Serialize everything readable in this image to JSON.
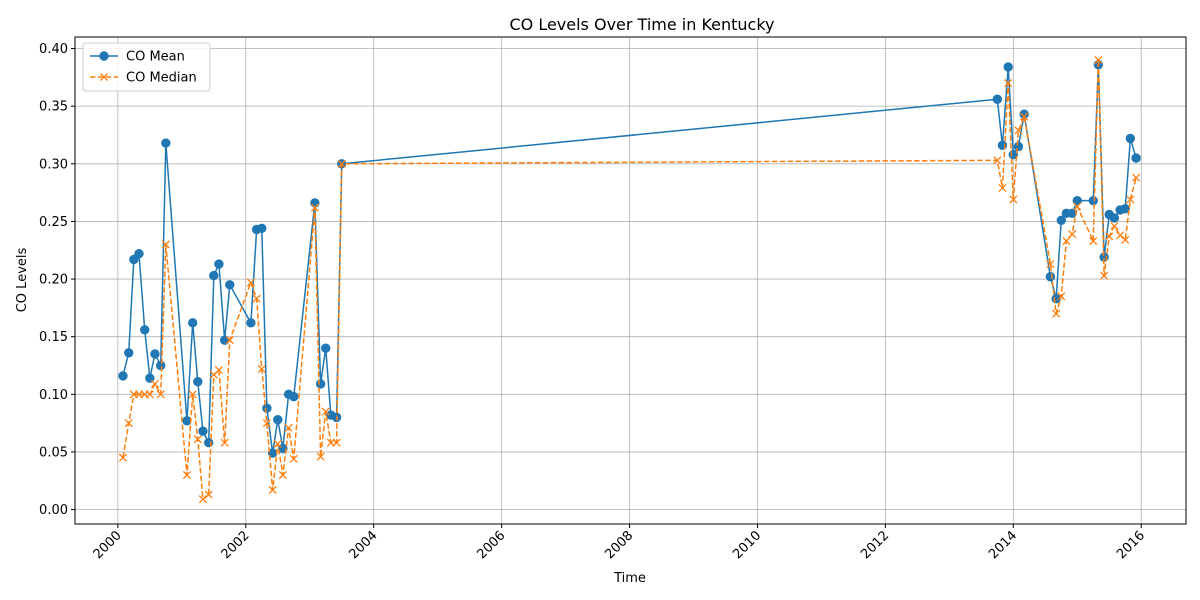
{
  "chart_data": {
    "type": "line",
    "title": "CO Levels Over Time in Kentucky",
    "xlabel": "Time",
    "ylabel": "CO Levels",
    "xlim": [
      1999.33,
      2016.7
    ],
    "ylim": [
      -0.0125,
      0.41
    ],
    "grid": true,
    "legend_position": "top-left",
    "x_ticks": [
      2000,
      2002,
      2004,
      2006,
      2008,
      2010,
      2012,
      2014,
      2016
    ],
    "x_tick_labels": [
      "2000",
      "2002",
      "2004",
      "2006",
      "2008",
      "2010",
      "2012",
      "2014",
      "2016"
    ],
    "y_ticks": [
      0.0,
      0.05,
      0.1,
      0.15,
      0.2,
      0.25,
      0.3,
      0.35,
      0.4
    ],
    "y_tick_labels": [
      "0.00",
      "0.05",
      "0.10",
      "0.15",
      "0.20",
      "0.25",
      "0.30",
      "0.35",
      "0.40"
    ],
    "series": [
      {
        "name": "CO Mean",
        "color": "#1f77b4",
        "style": "solid",
        "marker": "circle",
        "points": [
          [
            2000.08,
            0.116
          ],
          [
            2000.17,
            0.136
          ],
          [
            2000.25,
            0.217
          ],
          [
            2000.33,
            0.222
          ],
          [
            2000.42,
            0.156
          ],
          [
            2000.5,
            0.114
          ],
          [
            2000.58,
            0.135
          ],
          [
            2000.67,
            0.125
          ],
          [
            2000.75,
            0.318
          ],
          [
            2001.08,
            0.077
          ],
          [
            2001.17,
            0.162
          ],
          [
            2001.25,
            0.111
          ],
          [
            2001.33,
            0.068
          ],
          [
            2001.42,
            0.058
          ],
          [
            2001.5,
            0.203
          ],
          [
            2001.58,
            0.213
          ],
          [
            2001.67,
            0.147
          ],
          [
            2001.75,
            0.195
          ],
          [
            2002.08,
            0.162
          ],
          [
            2002.17,
            0.243
          ],
          [
            2002.25,
            0.244
          ],
          [
            2002.33,
            0.088
          ],
          [
            2002.42,
            0.049
          ],
          [
            2002.5,
            0.078
          ],
          [
            2002.58,
            0.053
          ],
          [
            2002.67,
            0.1
          ],
          [
            2002.75,
            0.098
          ],
          [
            2003.08,
            0.266
          ],
          [
            2003.17,
            0.109
          ],
          [
            2003.25,
            0.14
          ],
          [
            2003.33,
            0.082
          ],
          [
            2003.42,
            0.08
          ],
          [
            2003.5,
            0.3
          ],
          [
            2013.75,
            0.356
          ],
          [
            2013.83,
            0.316
          ],
          [
            2013.92,
            0.384
          ],
          [
            2014.0,
            0.308
          ],
          [
            2014.08,
            0.315
          ],
          [
            2014.17,
            0.343
          ],
          [
            2014.58,
            0.202
          ],
          [
            2014.67,
            0.183
          ],
          [
            2014.75,
            0.251
          ],
          [
            2014.83,
            0.257
          ],
          [
            2014.92,
            0.257
          ],
          [
            2015.0,
            0.268
          ],
          [
            2015.25,
            0.268
          ],
          [
            2015.33,
            0.386
          ],
          [
            2015.42,
            0.219
          ],
          [
            2015.5,
            0.256
          ],
          [
            2015.58,
            0.253
          ],
          [
            2015.67,
            0.26
          ],
          [
            2015.75,
            0.261
          ],
          [
            2015.83,
            0.322
          ],
          [
            2015.92,
            0.305
          ]
        ]
      },
      {
        "name": "CO Median",
        "color": "#ff7f0e",
        "style": "dashed",
        "marker": "x",
        "points": [
          [
            2000.08,
            0.045
          ],
          [
            2000.17,
            0.075
          ],
          [
            2000.25,
            0.1
          ],
          [
            2000.33,
            0.1
          ],
          [
            2000.42,
            0.1
          ],
          [
            2000.5,
            0.1
          ],
          [
            2000.58,
            0.109
          ],
          [
            2000.67,
            0.1
          ],
          [
            2000.75,
            0.23
          ],
          [
            2001.08,
            0.03
          ],
          [
            2001.17,
            0.1
          ],
          [
            2001.25,
            0.061
          ],
          [
            2001.33,
            0.009
          ],
          [
            2001.42,
            0.013
          ],
          [
            2001.5,
            0.117
          ],
          [
            2001.58,
            0.121
          ],
          [
            2001.67,
            0.058
          ],
          [
            2001.75,
            0.147
          ],
          [
            2002.08,
            0.197
          ],
          [
            2002.17,
            0.183
          ],
          [
            2002.25,
            0.122
          ],
          [
            2002.33,
            0.075
          ],
          [
            2002.42,
            0.017
          ],
          [
            2002.5,
            0.057
          ],
          [
            2002.58,
            0.03
          ],
          [
            2002.67,
            0.071
          ],
          [
            2002.75,
            0.044
          ],
          [
            2003.08,
            0.262
          ],
          [
            2003.17,
            0.046
          ],
          [
            2003.25,
            0.085
          ],
          [
            2003.33,
            0.058
          ],
          [
            2003.42,
            0.058
          ],
          [
            2003.5,
            0.3
          ],
          [
            2013.75,
            0.303
          ],
          [
            2013.83,
            0.279
          ],
          [
            2013.92,
            0.37
          ],
          [
            2014.0,
            0.269
          ],
          [
            2014.08,
            0.329
          ],
          [
            2014.17,
            0.341
          ],
          [
            2014.58,
            0.213
          ],
          [
            2014.67,
            0.17
          ],
          [
            2014.75,
            0.185
          ],
          [
            2014.83,
            0.233
          ],
          [
            2014.92,
            0.239
          ],
          [
            2015.0,
            0.263
          ],
          [
            2015.25,
            0.233
          ],
          [
            2015.33,
            0.39
          ],
          [
            2015.42,
            0.203
          ],
          [
            2015.5,
            0.237
          ],
          [
            2015.58,
            0.246
          ],
          [
            2015.67,
            0.238
          ],
          [
            2015.75,
            0.234
          ],
          [
            2015.83,
            0.269
          ],
          [
            2015.92,
            0.288
          ]
        ]
      }
    ]
  }
}
